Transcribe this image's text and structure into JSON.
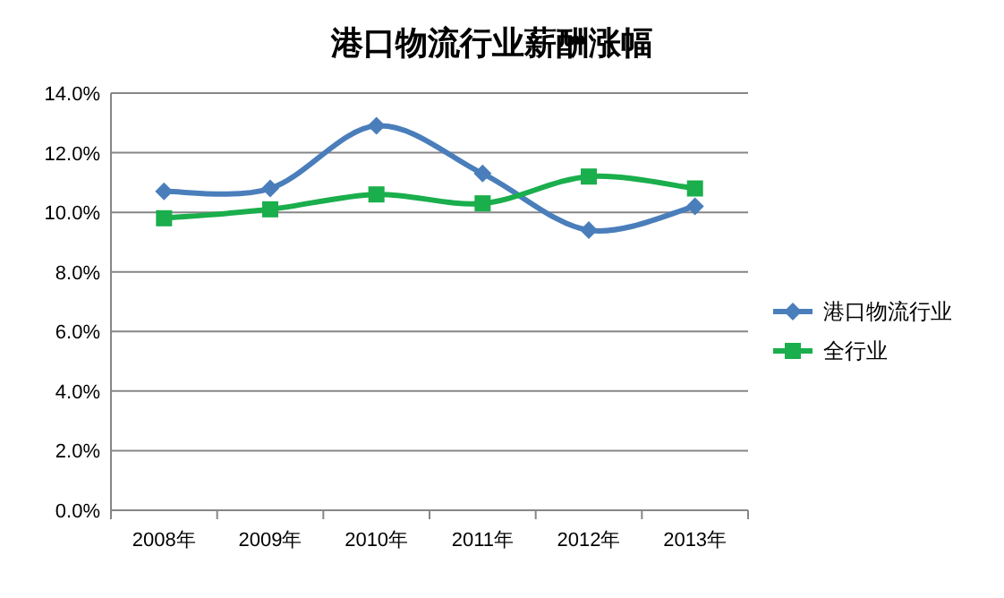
{
  "chart_data": {
    "type": "line",
    "title": "港口物流行业薪酬涨幅",
    "categories": [
      "2008年",
      "2009年",
      "2010年",
      "2011年",
      "2012年",
      "2013年"
    ],
    "series": [
      {
        "name": "港口物流行业",
        "color": "#4a7ebb",
        "marker": "diamond",
        "values": [
          10.7,
          10.8,
          12.9,
          11.3,
          9.4,
          10.2
        ]
      },
      {
        "name": "全行业",
        "color": "#1aae4c",
        "marker": "square",
        "values": [
          9.8,
          10.1,
          10.6,
          10.3,
          11.2,
          10.8
        ]
      }
    ],
    "ylim": [
      0,
      14
    ],
    "yticks": [
      {
        "value": 0,
        "label": "0.0%"
      },
      {
        "value": 2,
        "label": "2.0%"
      },
      {
        "value": 4,
        "label": "4.0%"
      },
      {
        "value": 6,
        "label": "6.0%"
      },
      {
        "value": 8,
        "label": "8.0%"
      },
      {
        "value": 10,
        "label": "10.0%"
      },
      {
        "value": 12,
        "label": "12.0%"
      },
      {
        "value": 14,
        "label": "14.0%"
      }
    ],
    "grid": "y",
    "legend": "right",
    "line_style": "solid"
  }
}
